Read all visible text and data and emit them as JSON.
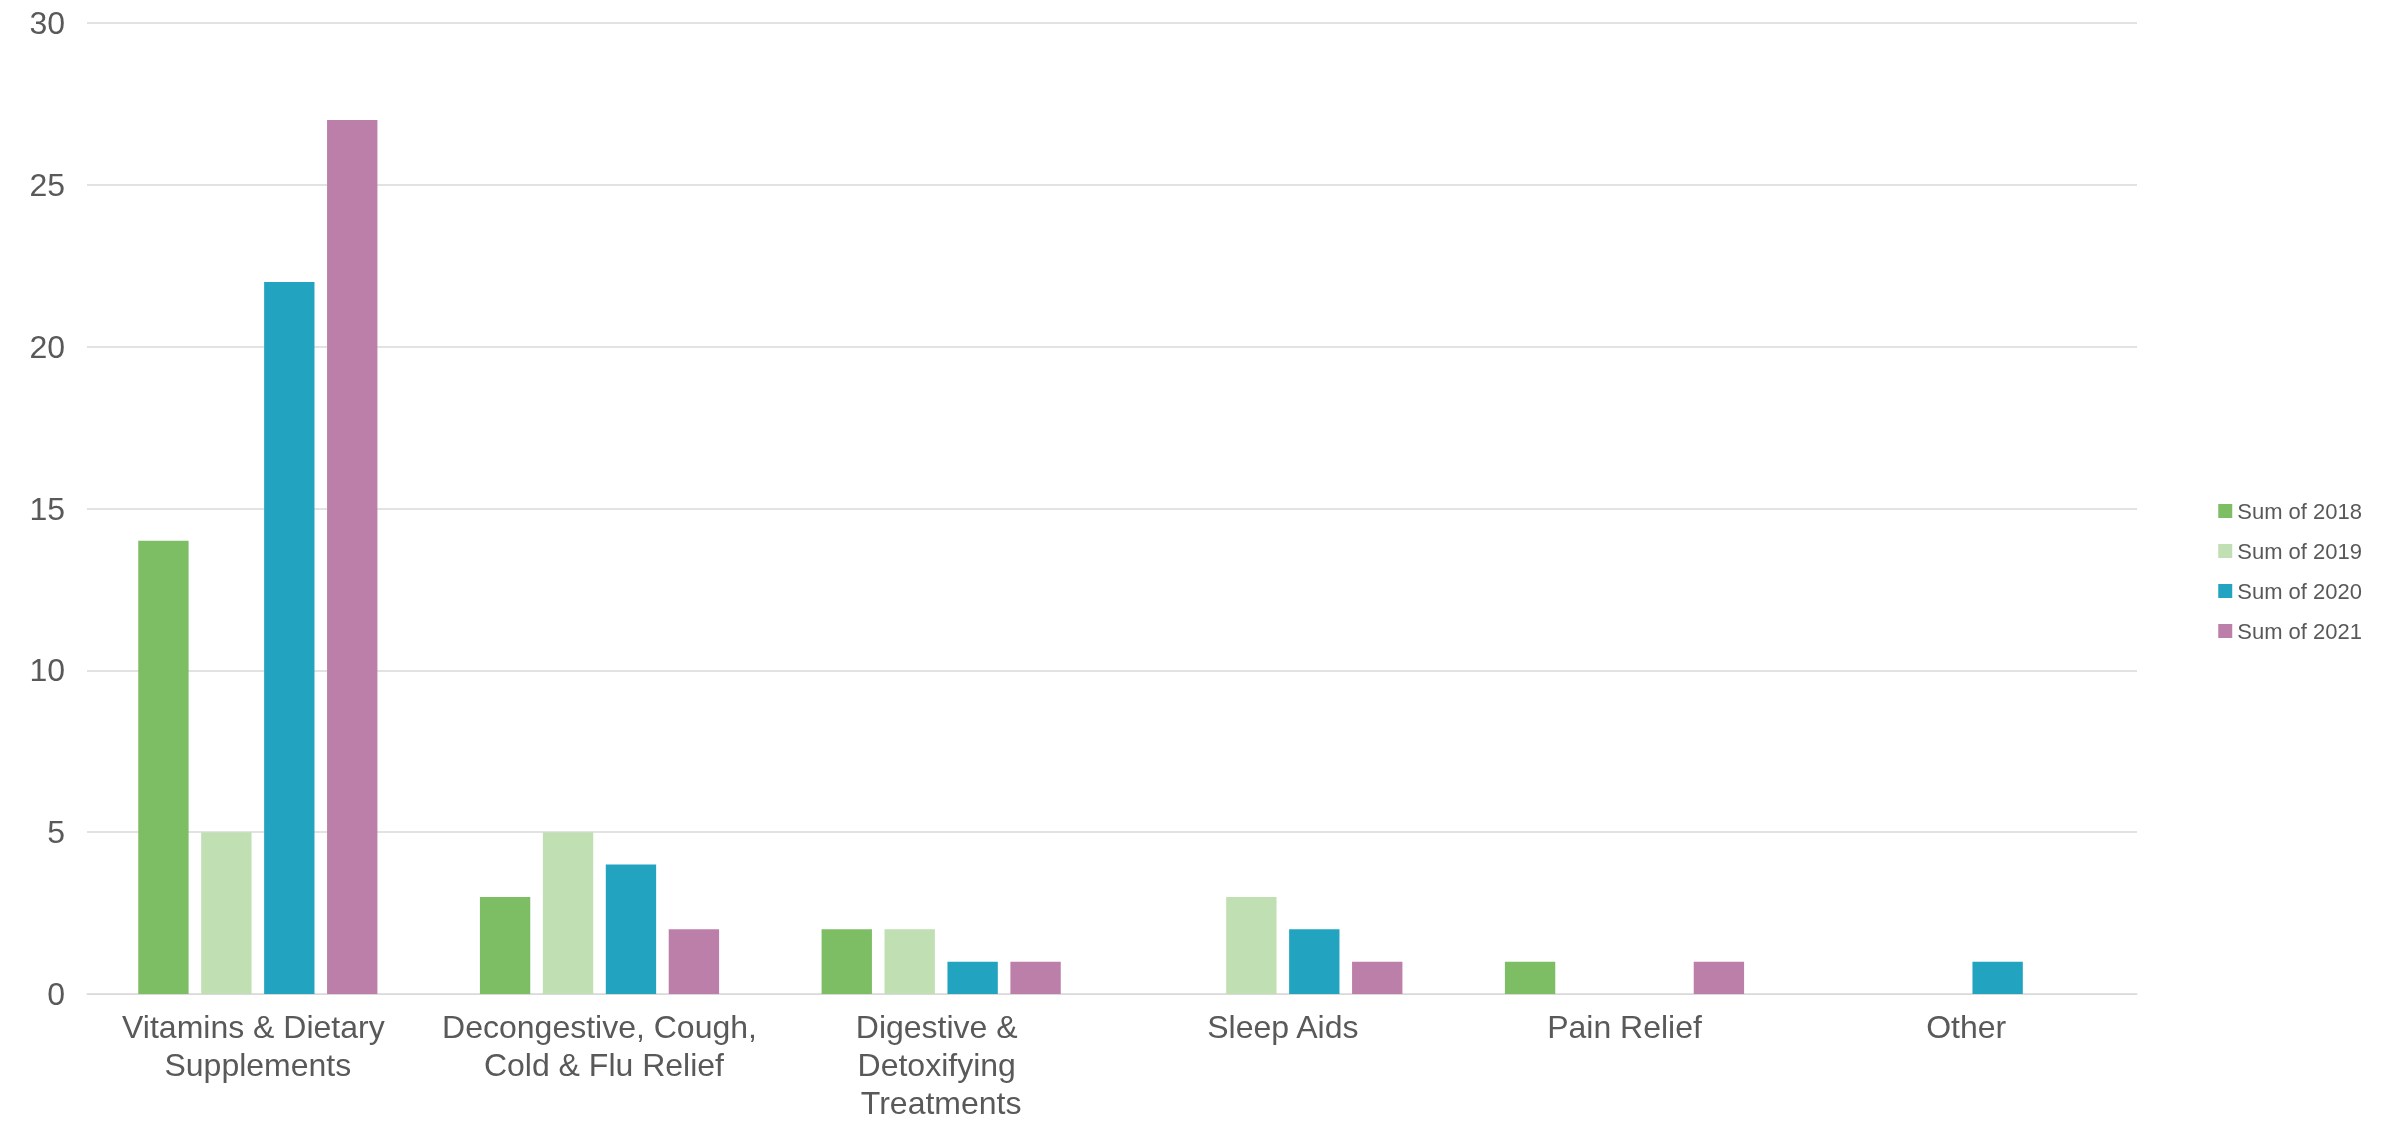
{
  "chart_data": {
    "type": "bar",
    "categories": [
      "Vitamins & Dietary Supplements",
      "Decongestive, Cough, Cold & Flu Relief",
      "Digestive & Detoxifying Treatments",
      "Sleep Aids",
      "Pain Relief",
      "Other"
    ],
    "series": [
      {
        "name": "Sum of 2018",
        "color": "#7dbe64",
        "values": [
          14,
          3,
          2,
          null,
          1,
          null
        ]
      },
      {
        "name": "Sum of 2019",
        "color": "#c0dfb2",
        "values": [
          5,
          5,
          2,
          3,
          null,
          null
        ]
      },
      {
        "name": "Sum of 2020",
        "color": "#22a4c0",
        "values": [
          22,
          4,
          1,
          2,
          null,
          1
        ]
      },
      {
        "name": "Sum of 2021",
        "color": "#bb7fa9",
        "values": [
          27,
          2,
          1,
          1,
          1,
          null
        ]
      }
    ],
    "ylim": [
      0,
      30
    ],
    "yticks": [
      0,
      5,
      10,
      15,
      20,
      25,
      30
    ],
    "grid": "y",
    "legend": "right"
  }
}
